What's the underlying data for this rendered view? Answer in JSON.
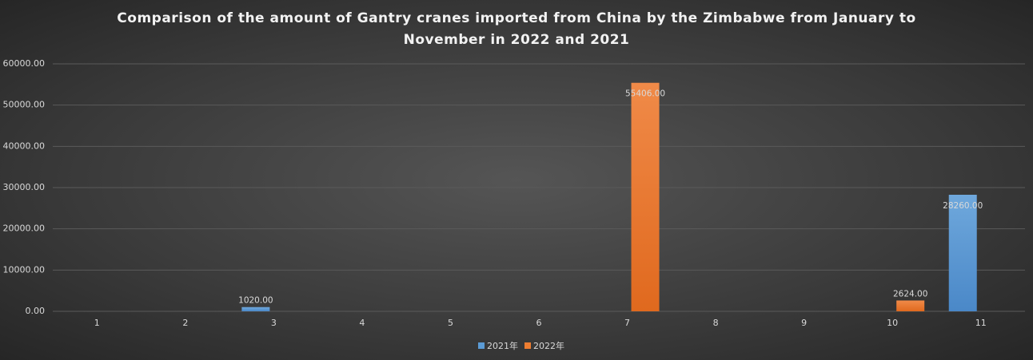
{
  "chart_data": {
    "type": "bar",
    "title": "Comparison of the amount of Gantry cranes imported from China by the Zimbabwe from January to November in 2022 and 2021",
    "categories": [
      "1",
      "2",
      "3",
      "4",
      "5",
      "6",
      "7",
      "8",
      "9",
      "10",
      "11"
    ],
    "series": [
      {
        "name": "2021年",
        "color": "#5b9bd5",
        "values": [
          null,
          null,
          1020,
          null,
          null,
          null,
          null,
          null,
          null,
          null,
          28260
        ],
        "value_labels": [
          null,
          null,
          "1020.00",
          null,
          null,
          null,
          null,
          null,
          null,
          null,
          "28260.00"
        ]
      },
      {
        "name": "2022年",
        "color": "#ed7d31",
        "values": [
          null,
          null,
          null,
          null,
          null,
          null,
          55406,
          null,
          null,
          2624,
          null
        ],
        "value_labels": [
          null,
          null,
          null,
          null,
          null,
          null,
          "55406.00",
          null,
          null,
          "2624.00",
          null
        ]
      }
    ],
    "ylim": [
      0,
      60000
    ],
    "yticks": [
      {
        "value": 0,
        "label": "0.00"
      },
      {
        "value": 10000,
        "label": "10000.00"
      },
      {
        "value": 20000,
        "label": "20000.00"
      },
      {
        "value": 30000,
        "label": "30000.00"
      },
      {
        "value": 40000,
        "label": "40000.00"
      },
      {
        "value": 50000,
        "label": "50000.00"
      },
      {
        "value": 60000,
        "label": "60000.00"
      }
    ],
    "grid": true,
    "legend": "bottom"
  }
}
